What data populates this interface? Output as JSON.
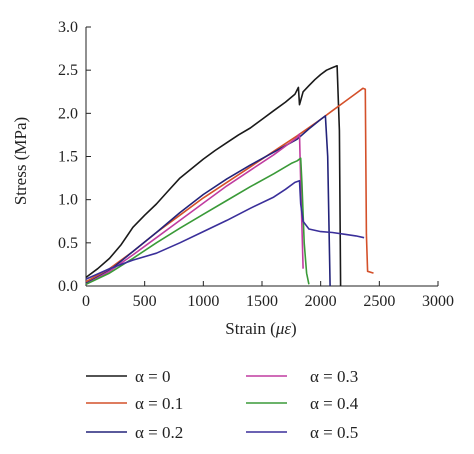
{
  "chart_data": {
    "type": "line",
    "xlabel_prefix": "Strain (",
    "xlabel_unit": "με",
    "xlabel_suffix": ")",
    "ylabel": "Stress (MPa)",
    "xlim": [
      0,
      3000
    ],
    "ylim": [
      0,
      3.0
    ],
    "x_ticks": [
      0,
      500,
      1000,
      1500,
      2000,
      2500,
      3000
    ],
    "y_ticks": [
      "0.0",
      "0.5",
      "1.0",
      "1.5",
      "2.0",
      "2.5",
      "3.0"
    ],
    "grid": false,
    "legend_position": "bottom",
    "series": [
      {
        "name": "α = 0",
        "color": "#1a1a1a",
        "points": [
          [
            0,
            0.1
          ],
          [
            100,
            0.2
          ],
          [
            200,
            0.32
          ],
          [
            300,
            0.48
          ],
          [
            400,
            0.68
          ],
          [
            500,
            0.82
          ],
          [
            600,
            0.95
          ],
          [
            700,
            1.1
          ],
          [
            800,
            1.25
          ],
          [
            900,
            1.36
          ],
          [
            1000,
            1.47
          ],
          [
            1100,
            1.57
          ],
          [
            1200,
            1.66
          ],
          [
            1300,
            1.75
          ],
          [
            1400,
            1.83
          ],
          [
            1500,
            1.93
          ],
          [
            1600,
            2.03
          ],
          [
            1700,
            2.13
          ],
          [
            1780,
            2.22
          ],
          [
            1810,
            2.3
          ],
          [
            1820,
            2.1
          ],
          [
            1850,
            2.25
          ],
          [
            1900,
            2.32
          ],
          [
            1950,
            2.39
          ],
          [
            2000,
            2.45
          ],
          [
            2050,
            2.5
          ],
          [
            2100,
            2.53
          ],
          [
            2140,
            2.55
          ],
          [
            2160,
            1.8
          ],
          [
            2170,
            0.0
          ]
        ]
      },
      {
        "name": "α = 0.1",
        "color": "#d4502a",
        "points": [
          [
            0,
            0.05
          ],
          [
            200,
            0.2
          ],
          [
            400,
            0.4
          ],
          [
            600,
            0.62
          ],
          [
            800,
            0.82
          ],
          [
            1000,
            1.02
          ],
          [
            1200,
            1.2
          ],
          [
            1400,
            1.38
          ],
          [
            1600,
            1.56
          ],
          [
            1800,
            1.74
          ],
          [
            2000,
            1.93
          ],
          [
            2100,
            2.03
          ],
          [
            2200,
            2.13
          ],
          [
            2300,
            2.23
          ],
          [
            2360,
            2.29
          ],
          [
            2380,
            2.28
          ],
          [
            2390,
            0.6
          ],
          [
            2400,
            0.17
          ],
          [
            2450,
            0.15
          ]
        ]
      },
      {
        "name": "α = 0.2",
        "color": "#23237a",
        "points": [
          [
            0,
            0.03
          ],
          [
            200,
            0.18
          ],
          [
            400,
            0.4
          ],
          [
            600,
            0.62
          ],
          [
            800,
            0.85
          ],
          [
            1000,
            1.06
          ],
          [
            1200,
            1.24
          ],
          [
            1400,
            1.4
          ],
          [
            1600,
            1.55
          ],
          [
            1800,
            1.7
          ],
          [
            1900,
            1.82
          ],
          [
            2000,
            1.93
          ],
          [
            2040,
            1.97
          ],
          [
            2060,
            1.5
          ],
          [
            2080,
            0.0
          ]
        ]
      },
      {
        "name": "α = 0.3",
        "color": "#c03ca0",
        "points": [
          [
            0,
            0.02
          ],
          [
            200,
            0.17
          ],
          [
            400,
            0.36
          ],
          [
            600,
            0.56
          ],
          [
            800,
            0.76
          ],
          [
            1000,
            0.96
          ],
          [
            1200,
            1.16
          ],
          [
            1400,
            1.34
          ],
          [
            1600,
            1.52
          ],
          [
            1700,
            1.62
          ],
          [
            1800,
            1.72
          ],
          [
            1820,
            1.76
          ],
          [
            1830,
            1.2
          ],
          [
            1850,
            0.2
          ]
        ]
      },
      {
        "name": "α = 0.4",
        "color": "#3a9a38",
        "points": [
          [
            0,
            0.02
          ],
          [
            200,
            0.15
          ],
          [
            400,
            0.32
          ],
          [
            600,
            0.5
          ],
          [
            800,
            0.67
          ],
          [
            1000,
            0.83
          ],
          [
            1200,
            0.99
          ],
          [
            1400,
            1.15
          ],
          [
            1600,
            1.3
          ],
          [
            1750,
            1.42
          ],
          [
            1800,
            1.45
          ],
          [
            1830,
            1.48
          ],
          [
            1840,
            1.2
          ],
          [
            1860,
            0.5
          ],
          [
            1880,
            0.15
          ],
          [
            1900,
            0.02
          ]
        ]
      },
      {
        "name": "α = 0.5",
        "color": "#3a2f9a",
        "points": [
          [
            0,
            0.08
          ],
          [
            200,
            0.2
          ],
          [
            400,
            0.3
          ],
          [
            600,
            0.38
          ],
          [
            800,
            0.5
          ],
          [
            1000,
            0.63
          ],
          [
            1200,
            0.76
          ],
          [
            1400,
            0.9
          ],
          [
            1600,
            1.03
          ],
          [
            1700,
            1.12
          ],
          [
            1780,
            1.2
          ],
          [
            1820,
            1.22
          ],
          [
            1830,
            0.95
          ],
          [
            1850,
            0.75
          ],
          [
            1900,
            0.66
          ],
          [
            2000,
            0.63
          ],
          [
            2100,
            0.62
          ],
          [
            2200,
            0.6
          ],
          [
            2300,
            0.58
          ],
          [
            2370,
            0.56
          ]
        ]
      }
    ]
  }
}
